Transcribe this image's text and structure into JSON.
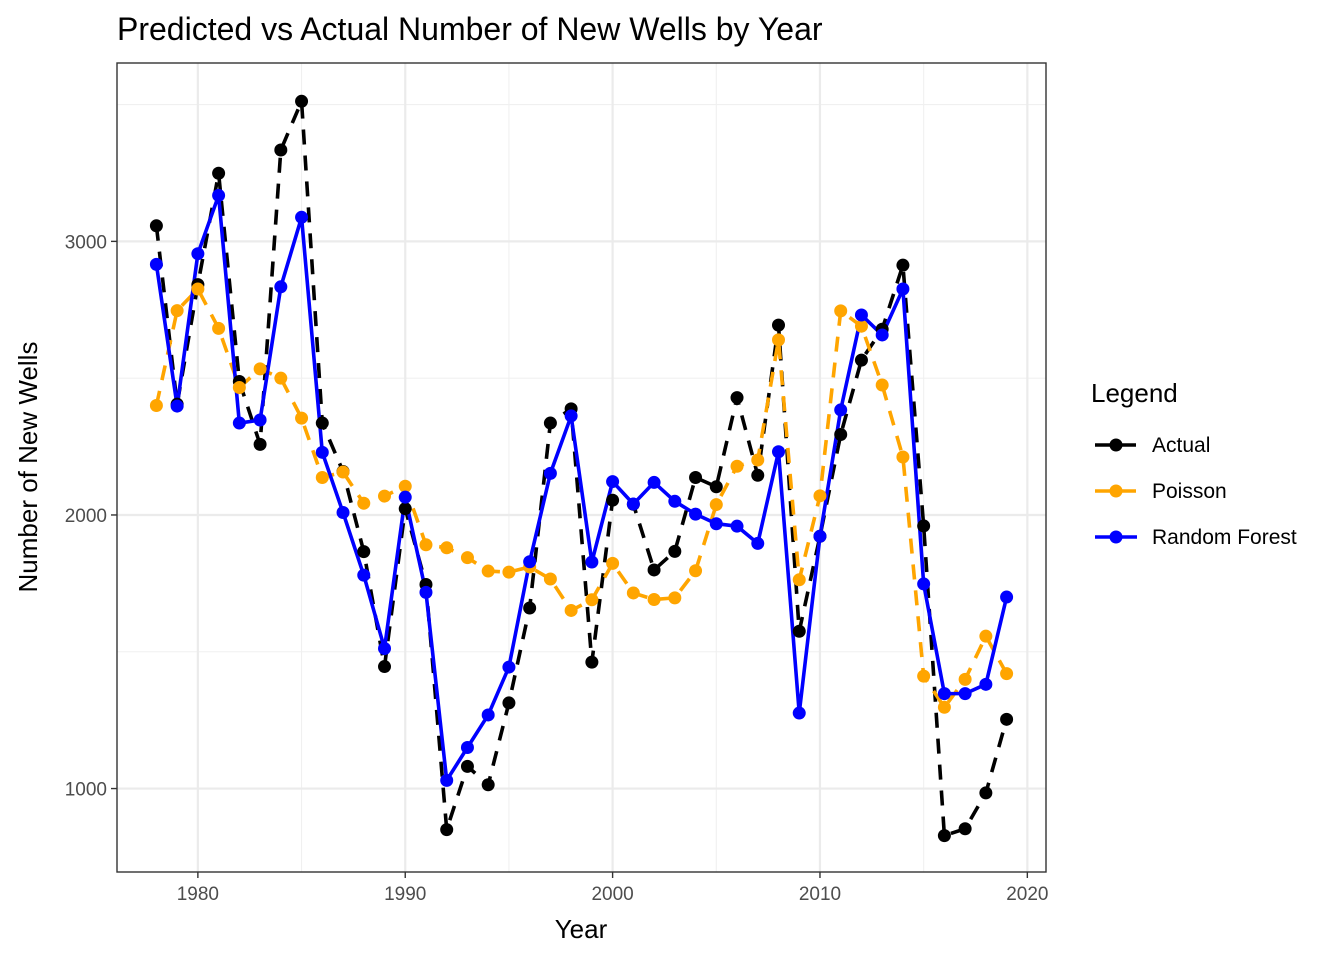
{
  "chart_data": {
    "type": "line",
    "title": "Predicted vs Actual Number of New Wells by Year",
    "xlabel": "Year",
    "ylabel": "Number of New Wells",
    "xlim": [
      1976.1,
      2020.9
    ],
    "ylim": [
      695,
      3652
    ],
    "x_ticks": [
      "1980",
      "1990",
      "2000",
      "2010",
      "2020"
    ],
    "y_ticks": [
      "1000",
      "2000",
      "3000"
    ],
    "grid": true,
    "legend": {
      "title": "Legend",
      "position": "right"
    },
    "x": [
      1978,
      1979,
      1980,
      1981,
      1982,
      1983,
      1984,
      1985,
      1986,
      1987,
      1988,
      1989,
      1990,
      1991,
      1992,
      1993,
      1994,
      1995,
      1996,
      1997,
      1998,
      1999,
      2000,
      2001,
      2002,
      2003,
      2004,
      2005,
      2006,
      2007,
      2008,
      2009,
      2010,
      2011,
      2012,
      2013,
      2014,
      2015,
      2016,
      2017,
      2018,
      2019
    ],
    "series": [
      {
        "name": "Actual",
        "color": "#000000",
        "dash": "dashed",
        "values": [
          3057,
          2405,
          2842,
          3249,
          2488,
          2258,
          3334,
          3512,
          2336,
          2159,
          1866,
          1446,
          2023,
          1746,
          850,
          1081,
          1014,
          1313,
          1660,
          2336,
          2388,
          1462,
          2054,
          2039,
          1799,
          1867,
          2137,
          2103,
          2429,
          2145,
          2694,
          1575,
          1922,
          2294,
          2566,
          2679,
          2913,
          1960,
          828,
          853,
          984,
          1253
        ]
      },
      {
        "name": "Poisson",
        "color": "#FFA500",
        "dash": "dashed",
        "values": [
          2400,
          2747,
          2826,
          2682,
          2466,
          2534,
          2500,
          2354,
          2137,
          2157,
          2043,
          2069,
          2105,
          1891,
          1880,
          1844,
          1795,
          1791,
          1810,
          1766,
          1651,
          1690,
          1823,
          1715,
          1691,
          1697,
          1796,
          2038,
          2178,
          2201,
          2640,
          1763,
          2070,
          2746,
          2690,
          2475,
          2212,
          1411,
          1297,
          1399,
          1557,
          1420
        ]
      },
      {
        "name": "Random Forest",
        "color": "#0000FF",
        "dash": "solid",
        "values": [
          2916,
          2398,
          2955,
          3168,
          2336,
          2347,
          2834,
          3088,
          2229,
          2009,
          1780,
          1512,
          2065,
          1717,
          1030,
          1150,
          1269,
          1444,
          1829,
          2152,
          2362,
          1828,
          2122,
          2040,
          2119,
          2050,
          2003,
          1968,
          1959,
          1896,
          2231,
          1276,
          1922,
          2384,
          2731,
          2658,
          2826,
          1748,
          1347,
          1347,
          1381,
          1700
        ]
      }
    ]
  }
}
